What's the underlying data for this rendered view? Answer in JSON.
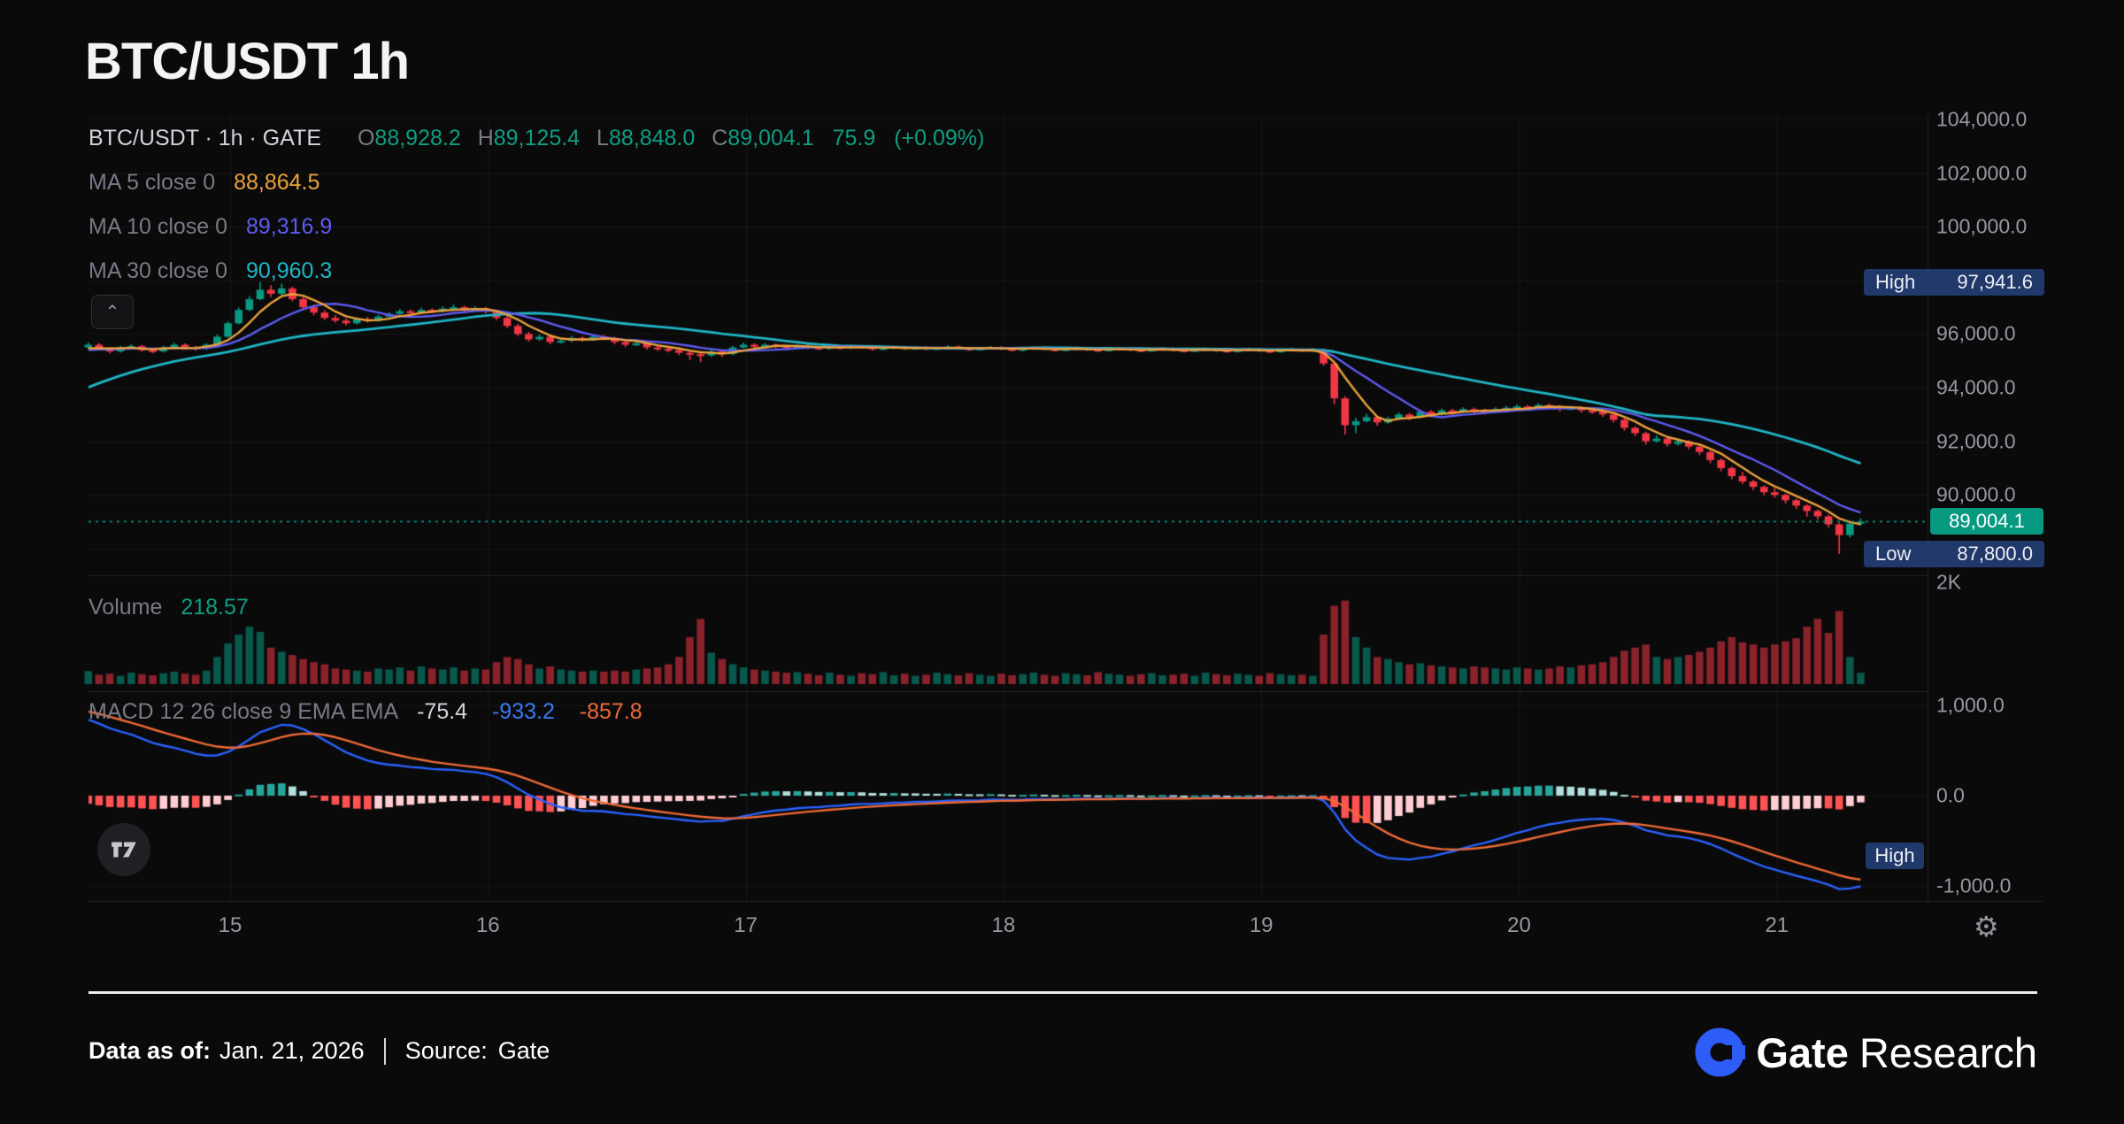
{
  "title": "BTC/USDT 1h",
  "legend": {
    "symbol_line": "BTC/USDT · 1h · GATE",
    "ohlc": {
      "o_label": "O",
      "o": "88,928.2",
      "h_label": "H",
      "h": "89,125.4",
      "l_label": "L",
      "l": "88,848.0",
      "c_label": "C",
      "c": "89,004.1",
      "change": "75.9",
      "change_pct": "(+0.09%)"
    },
    "ma5": {
      "label": "MA 5 close 0",
      "value": "88,864.5"
    },
    "ma10": {
      "label": "MA 10 close 0",
      "value": "89,316.9"
    },
    "ma30": {
      "label": "MA 30 close 0",
      "value": "90,960.3"
    },
    "collapse_icon": "⌃"
  },
  "volume_legend": {
    "label": "Volume",
    "value": "218.57"
  },
  "macd_legend": {
    "label": "MACD 12 26 close 9 EMA EMA",
    "hist": "-75.4",
    "macd": "-933.2",
    "signal": "-857.8"
  },
  "badges": {
    "high_label": "High",
    "high_value": "97,941.6",
    "low_label": "Low",
    "low_value": "87,800.0",
    "last_price": "89,004.1",
    "macd_marker_label": "High"
  },
  "gear_icon": "⚙",
  "footer": {
    "data_as_of_label": "Data as of:",
    "date": "Jan. 21, 2026",
    "source_label": "Source:",
    "source": "Gate",
    "brand_bold": "Gate",
    "brand_light": "Research"
  },
  "chart_data": {
    "type": "candlestick",
    "pair": "BTC/USDT",
    "interval": "1h",
    "exchange": "GATE",
    "last_price": 89004.1,
    "high": 97941.6,
    "low": 87800.0,
    "axes": {
      "price_ticks": [
        104000,
        102000,
        100000,
        96000,
        94000,
        92000,
        90000
      ],
      "price_grid": [
        104000,
        102000,
        100000,
        98000,
        96000,
        94000,
        92000,
        90000,
        88000
      ],
      "volume_label": "2K",
      "macd_ticks": [
        1000,
        0,
        -1000
      ],
      "time_labels": [
        "15",
        "16",
        "17",
        "18",
        "19",
        "20",
        "21"
      ]
    },
    "colors": {
      "up": "#089981",
      "down": "#f23645",
      "vol_up": "rgba(8,153,129,0.55)",
      "vol_down": "rgba(242,54,69,0.55)",
      "ma5": "#eda13c",
      "ma10": "#5f5bf1",
      "ma30": "#1fb5c4",
      "macd_line": "#2962ff",
      "signal_line": "#ef6a37",
      "hist_pos_grow": "#26a69a",
      "hist_pos_fall": "#b2dfdb",
      "hist_neg_fall": "#ff5252",
      "hist_neg_grow": "#ffcdd2",
      "last_price_line": "#089981",
      "grid": "rgba(255,255,255,0.055)",
      "frame": "rgba(255,255,255,0.10)"
    },
    "prehistory_closes": [
      90500,
      90800,
      91100,
      91400,
      91700,
      92000,
      92300,
      92600,
      92900,
      93150,
      93400,
      93650,
      93900,
      94100,
      94300,
      94500,
      94650,
      94800,
      94950,
      95050,
      95150,
      95250,
      95300,
      95350,
      95380,
      95400,
      95420,
      95430,
      95440,
      95450
    ],
    "candles": [
      [
        95500,
        95680,
        95420,
        95600,
        250
      ],
      [
        95600,
        95660,
        95380,
        95450,
        180
      ],
      [
        95450,
        95520,
        95280,
        95350,
        200
      ],
      [
        95350,
        95560,
        95300,
        95500,
        160
      ],
      [
        95500,
        95620,
        95440,
        95550,
        220
      ],
      [
        95550,
        95600,
        95340,
        95400,
        190
      ],
      [
        95400,
        95470,
        95280,
        95350,
        170
      ],
      [
        95350,
        95560,
        95310,
        95500,
        210
      ],
      [
        95500,
        95670,
        95450,
        95600,
        240
      ],
      [
        95600,
        95650,
        95430,
        95500,
        200
      ],
      [
        95500,
        95560,
        95380,
        95450,
        180
      ],
      [
        95450,
        95660,
        95400,
        95600,
        260
      ],
      [
        95600,
        95980,
        95560,
        95900,
        520
      ],
      [
        95900,
        96480,
        95860,
        96400,
        780
      ],
      [
        96400,
        96990,
        96360,
        96900,
        950
      ],
      [
        96900,
        97420,
        96850,
        97300,
        1100
      ],
      [
        97300,
        97941.6,
        97260,
        97650,
        1000
      ],
      [
        97650,
        97820,
        97380,
        97500,
        700
      ],
      [
        97500,
        97880,
        97440,
        97700,
        620
      ],
      [
        97700,
        97760,
        97220,
        97300,
        560
      ],
      [
        97300,
        97380,
        96900,
        97000,
        480
      ],
      [
        97000,
        97090,
        96700,
        96800,
        420
      ],
      [
        96800,
        96880,
        96520,
        96600,
        380
      ],
      [
        96600,
        96700,
        96420,
        96500,
        300
      ],
      [
        96500,
        96580,
        96320,
        96400,
        280
      ],
      [
        96400,
        96620,
        96360,
        96550,
        260
      ],
      [
        96550,
        96640,
        96420,
        96500,
        240
      ],
      [
        96500,
        96720,
        96460,
        96650,
        300
      ],
      [
        96650,
        96820,
        96600,
        96750,
        280
      ],
      [
        96750,
        96930,
        96700,
        96850,
        320
      ],
      [
        96850,
        96910,
        96720,
        96800,
        260
      ],
      [
        96800,
        96980,
        96750,
        96900,
        340
      ],
      [
        96900,
        96960,
        96770,
        96850,
        300
      ],
      [
        96850,
        97030,
        96800,
        96950,
        280
      ],
      [
        96950,
        97100,
        96900,
        97000,
        320
      ],
      [
        97000,
        97060,
        96820,
        96900,
        260
      ],
      [
        96900,
        97030,
        96850,
        96950,
        300
      ],
      [
        96950,
        97010,
        96770,
        96850,
        280
      ],
      [
        96850,
        96900,
        96520,
        96600,
        420
      ],
      [
        96600,
        96680,
        96220,
        96300,
        520
      ],
      [
        96300,
        96380,
        95920,
        96000,
        480
      ],
      [
        96000,
        96080,
        95720,
        95800,
        380
      ],
      [
        95800,
        95980,
        95750,
        95900,
        300
      ],
      [
        95900,
        95950,
        95620,
        95700,
        340
      ],
      [
        95700,
        95830,
        95650,
        95750,
        280
      ],
      [
        95750,
        95930,
        95700,
        95850,
        260
      ],
      [
        95850,
        95910,
        95720,
        95800,
        240
      ],
      [
        95800,
        95980,
        95750,
        95900,
        260
      ],
      [
        95900,
        95960,
        95770,
        95850,
        240
      ],
      [
        95850,
        95900,
        95620,
        95700,
        260
      ],
      [
        95700,
        95780,
        95520,
        95600,
        240
      ],
      [
        95600,
        95730,
        95550,
        95650,
        280
      ],
      [
        95650,
        95700,
        95420,
        95500,
        300
      ],
      [
        95500,
        95580,
        95370,
        95450,
        320
      ],
      [
        95450,
        95520,
        95320,
        95400,
        380
      ],
      [
        95400,
        95460,
        95210,
        95300,
        520
      ],
      [
        95300,
        95360,
        95040,
        95250,
        900
      ],
      [
        95250,
        95310,
        94950,
        95200,
        1250
      ],
      [
        95200,
        95420,
        95150,
        95350,
        600
      ],
      [
        95350,
        95400,
        95140,
        95250,
        480
      ],
      [
        95250,
        95560,
        95210,
        95500,
        380
      ],
      [
        95500,
        95680,
        95460,
        95600,
        320
      ],
      [
        95600,
        95650,
        95470,
        95550,
        280
      ],
      [
        95550,
        95660,
        95500,
        95600,
        260
      ],
      [
        95600,
        95640,
        95470,
        95550,
        240
      ],
      [
        95550,
        95600,
        95420,
        95500,
        220
      ],
      [
        95500,
        95620,
        95460,
        95550,
        230
      ],
      [
        95550,
        95610,
        95440,
        95500,
        200
      ],
      [
        95500,
        95550,
        95390,
        95450,
        170
      ],
      [
        95450,
        95570,
        95410,
        95520,
        220
      ],
      [
        95520,
        95570,
        95420,
        95480,
        180
      ],
      [
        95480,
        95600,
        95440,
        95550,
        160
      ],
      [
        95550,
        95590,
        95450,
        95500,
        210
      ],
      [
        95500,
        95540,
        95380,
        95430,
        190
      ],
      [
        95430,
        95530,
        95390,
        95480,
        230
      ],
      [
        95480,
        95570,
        95440,
        95520,
        170
      ],
      [
        95520,
        95560,
        95410,
        95460,
        200
      ],
      [
        95460,
        95550,
        95420,
        95500,
        160
      ],
      [
        95500,
        95540,
        95390,
        95440,
        180
      ],
      [
        95440,
        95530,
        95400,
        95480,
        220
      ],
      [
        95480,
        95580,
        95440,
        95530,
        190
      ],
      [
        95530,
        95570,
        95420,
        95470,
        170
      ],
      [
        95470,
        95510,
        95370,
        95420,
        210
      ],
      [
        95420,
        95520,
        95380,
        95470,
        180
      ],
      [
        95470,
        95560,
        95430,
        95510,
        160
      ],
      [
        95510,
        95550,
        95400,
        95450,
        200
      ],
      [
        95450,
        95490,
        95350,
        95400,
        170
      ],
      [
        95400,
        95500,
        95360,
        95450,
        190
      ],
      [
        95450,
        95550,
        95410,
        95500,
        220
      ],
      [
        95500,
        95540,
        95390,
        95440,
        180
      ],
      [
        95440,
        95480,
        95340,
        95390,
        160
      ],
      [
        95390,
        95490,
        95350,
        95440,
        210
      ],
      [
        95440,
        95530,
        95400,
        95480,
        190
      ],
      [
        95480,
        95520,
        95370,
        95420,
        170
      ],
      [
        95420,
        95460,
        95330,
        95380,
        230
      ],
      [
        95380,
        95480,
        95340,
        95430,
        200
      ],
      [
        95430,
        95520,
        95390,
        95470,
        180
      ],
      [
        95470,
        95510,
        95360,
        95410,
        160
      ],
      [
        95410,
        95450,
        95320,
        95370,
        190
      ],
      [
        95370,
        95470,
        95330,
        95420,
        210
      ],
      [
        95420,
        95510,
        95380,
        95460,
        170
      ],
      [
        95460,
        95500,
        95350,
        95400,
        180
      ],
      [
        95400,
        95440,
        95310,
        95360,
        200
      ],
      [
        95360,
        95460,
        95320,
        95410,
        160
      ],
      [
        95410,
        95500,
        95370,
        95450,
        220
      ],
      [
        95450,
        95490,
        95340,
        95390,
        190
      ],
      [
        95390,
        95430,
        95300,
        95350,
        170
      ],
      [
        95350,
        95450,
        95310,
        95400,
        200
      ],
      [
        95400,
        95490,
        95360,
        95440,
        180
      ],
      [
        95440,
        95480,
        95330,
        95380,
        160
      ],
      [
        95380,
        95420,
        95290,
        95340,
        210
      ],
      [
        95340,
        95440,
        95300,
        95390,
        190
      ],
      [
        95390,
        95480,
        95350,
        95430,
        170
      ],
      [
        95430,
        95470,
        95330,
        95380,
        180
      ],
      [
        95380,
        95470,
        95340,
        95420,
        160
      ],
      [
        95420,
        95460,
        94820,
        94900,
        950
      ],
      [
        94900,
        94960,
        93380,
        93600,
        1500
      ],
      [
        93600,
        93680,
        92250,
        92600,
        1600
      ],
      [
        92600,
        92880,
        92300,
        92750,
        900
      ],
      [
        92750,
        93020,
        92700,
        92900,
        700
      ],
      [
        92900,
        92960,
        92580,
        92700,
        520
      ],
      [
        92700,
        92920,
        92650,
        92850,
        480
      ],
      [
        92850,
        93080,
        92800,
        93000,
        420
      ],
      [
        93000,
        93060,
        92790,
        92900,
        380
      ],
      [
        92900,
        93170,
        92860,
        93100,
        400
      ],
      [
        93100,
        93160,
        92900,
        93000,
        360
      ],
      [
        93000,
        93220,
        92960,
        93150,
        340
      ],
      [
        93150,
        93210,
        93000,
        93100,
        320
      ],
      [
        93100,
        93270,
        93060,
        93200,
        300
      ],
      [
        93200,
        93260,
        93050,
        93150,
        340
      ],
      [
        93150,
        93210,
        93000,
        93100,
        320
      ],
      [
        93100,
        93270,
        93060,
        93200,
        300
      ],
      [
        93200,
        93320,
        93150,
        93250,
        280
      ],
      [
        93250,
        93380,
        93200,
        93300,
        320
      ],
      [
        93300,
        93360,
        93150,
        93250,
        300
      ],
      [
        93250,
        93420,
        93210,
        93350,
        280
      ],
      [
        93350,
        93410,
        93220,
        93300,
        300
      ],
      [
        93300,
        93350,
        93110,
        93200,
        340
      ],
      [
        93200,
        93320,
        93160,
        93250,
        320
      ],
      [
        93250,
        93300,
        93060,
        93150,
        360
      ],
      [
        93150,
        93210,
        93020,
        93100,
        380
      ],
      [
        93100,
        93150,
        92910,
        93000,
        420
      ],
      [
        93000,
        93050,
        92700,
        92800,
        520
      ],
      [
        92800,
        92860,
        92390,
        92500,
        640
      ],
      [
        92500,
        92570,
        92190,
        92300,
        700
      ],
      [
        92300,
        92360,
        91880,
        92000,
        760
      ],
      [
        92000,
        92220,
        91950,
        92100,
        520
      ],
      [
        92100,
        92150,
        91800,
        91900,
        480
      ],
      [
        91900,
        92080,
        91850,
        92000,
        520
      ],
      [
        92000,
        92050,
        91700,
        91800,
        560
      ],
      [
        91800,
        91860,
        91490,
        91600,
        620
      ],
      [
        91600,
        91660,
        91180,
        91300,
        700
      ],
      [
        91300,
        91360,
        90880,
        91000,
        820
      ],
      [
        91000,
        91060,
        90580,
        90700,
        900
      ],
      [
        90700,
        90860,
        90400,
        90500,
        800
      ],
      [
        90500,
        90560,
        90180,
        90300,
        760
      ],
      [
        90300,
        90360,
        89980,
        90100,
        700
      ],
      [
        90100,
        90260,
        89900,
        90000,
        760
      ],
      [
        90000,
        90050,
        89680,
        89800,
        820
      ],
      [
        89800,
        89860,
        89480,
        89600,
        880
      ],
      [
        89600,
        89650,
        89190,
        89400,
        1100
      ],
      [
        89400,
        89460,
        89080,
        89200,
        1250
      ],
      [
        89200,
        89260,
        88780,
        88900,
        980
      ],
      [
        88900,
        88960,
        87800,
        88500,
        1400
      ],
      [
        88500,
        89010,
        88420,
        88928,
        520
      ],
      [
        88928.2,
        89125.4,
        88848.0,
        89004.1,
        218.57
      ]
    ]
  }
}
